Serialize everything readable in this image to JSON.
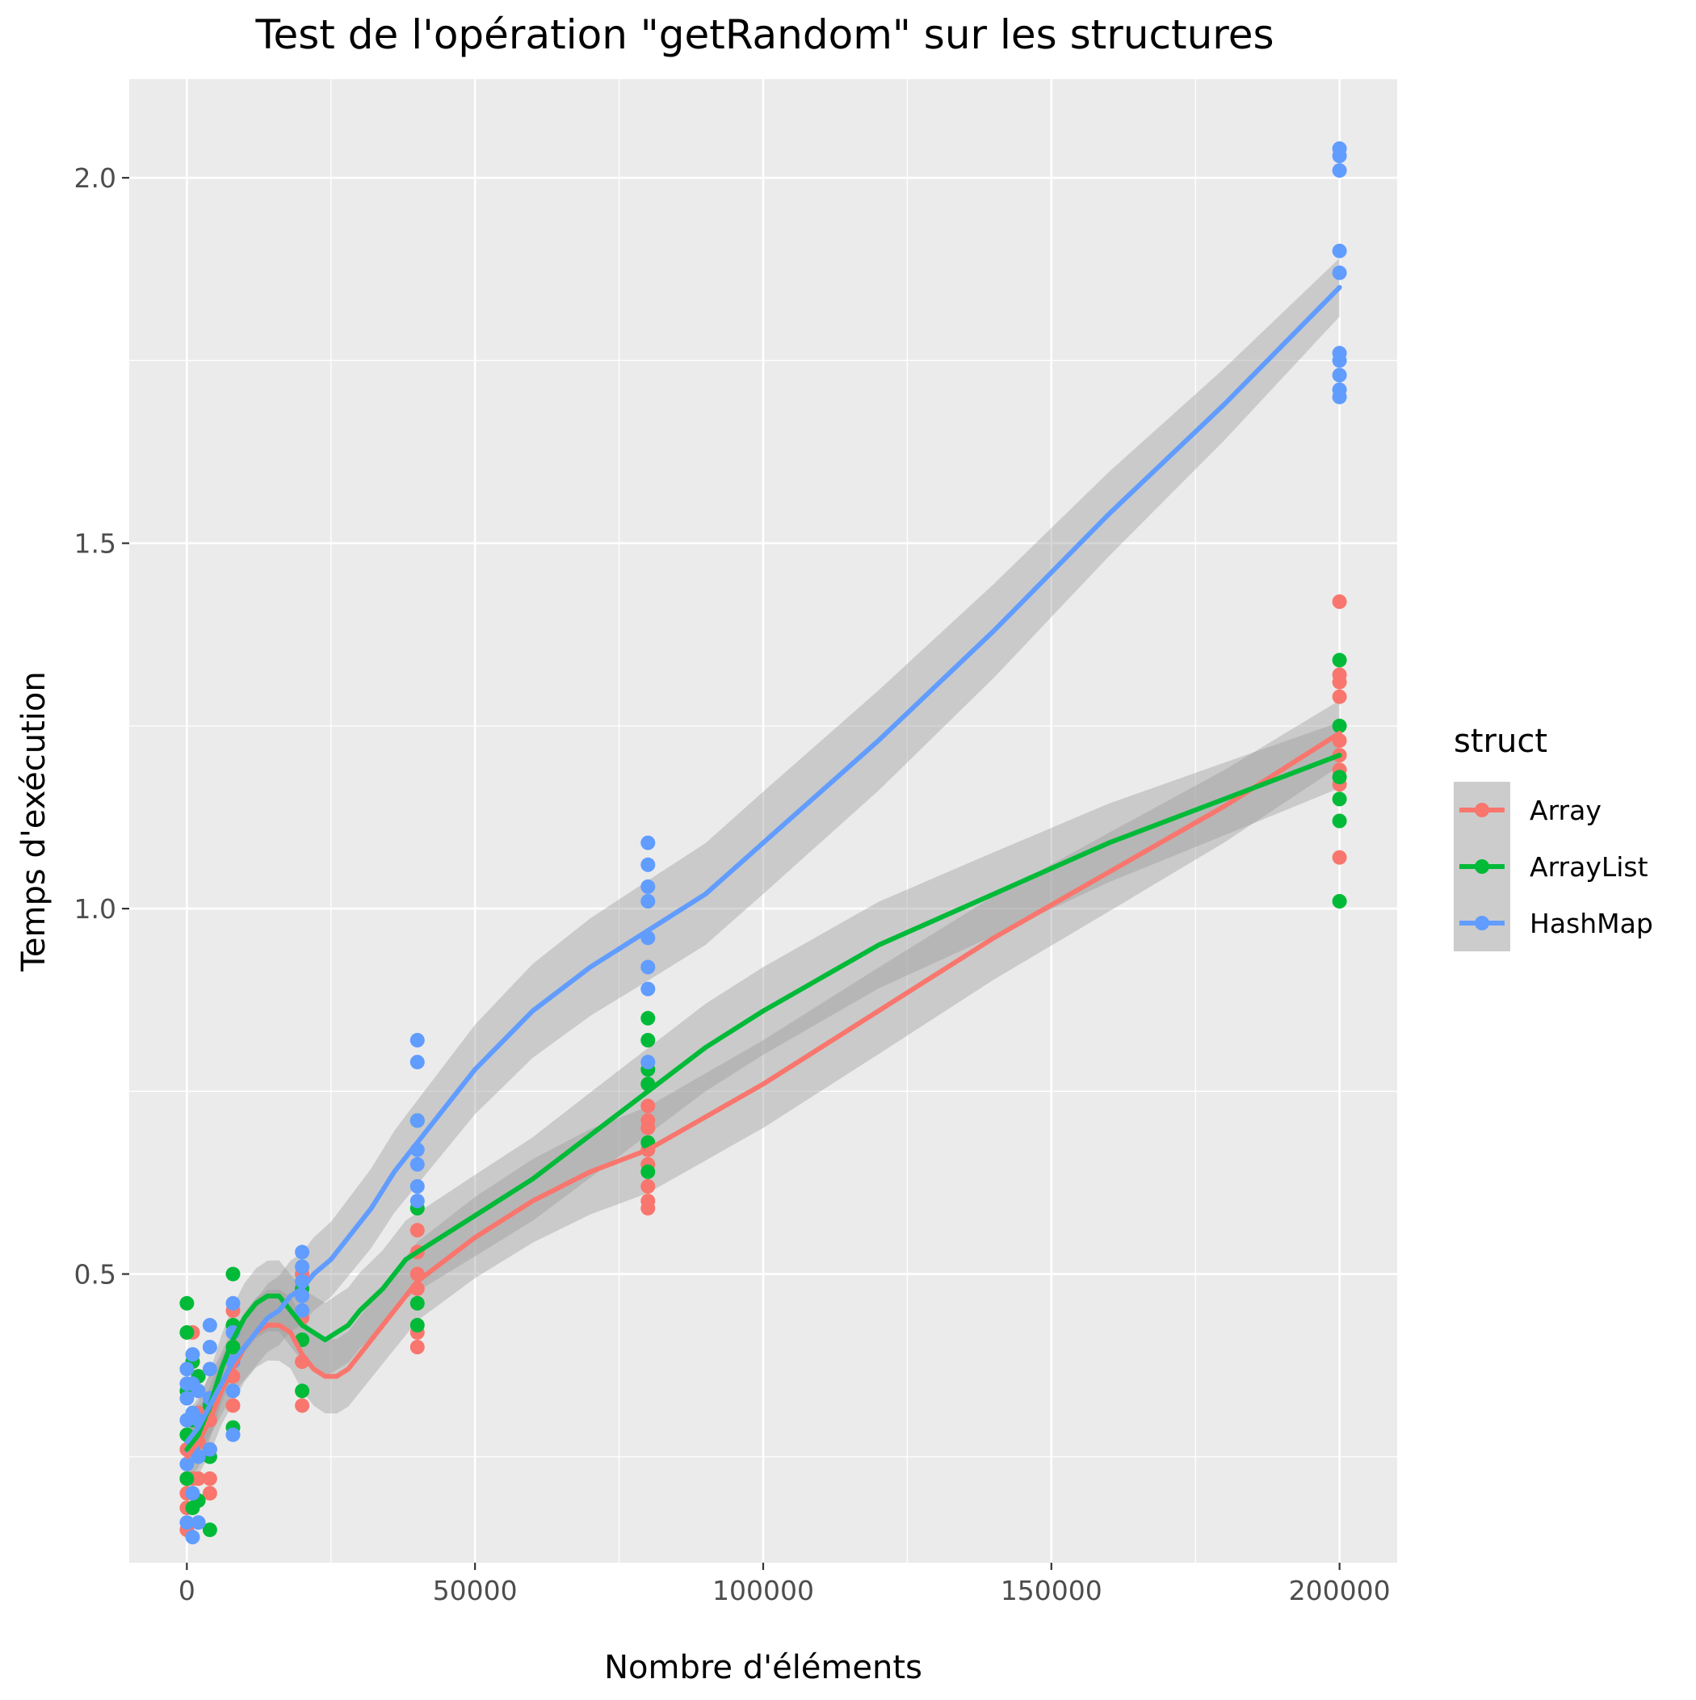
{
  "chart_data": {
    "type": "scatter",
    "title": "Test de l'opération \"getRandom\" sur les structures",
    "xlabel": "Nombre d'éléments",
    "ylabel": "Temps d'exécution",
    "xlim": [
      -10000,
      210000
    ],
    "ylim": [
      0.105,
      2.135
    ],
    "x_major_ticks": [
      0,
      50000,
      100000,
      150000,
      200000
    ],
    "x_tick_labels": [
      "0",
      "50000",
      "100000",
      "150000",
      "200000"
    ],
    "x_minor_ticks": [
      25000,
      75000,
      125000,
      175000
    ],
    "y_major_ticks": [
      0.5,
      1.0,
      1.5,
      2.0
    ],
    "y_tick_labels": [
      "0.5",
      "1.0",
      "1.5",
      "2.0"
    ],
    "y_minor_ticks": [
      0.25,
      0.75,
      1.25,
      1.75
    ],
    "grid": true,
    "legend": {
      "title": "struct",
      "position": "right",
      "entries": [
        "Array",
        "ArrayList",
        "HashMap"
      ]
    },
    "series": [
      {
        "name": "Array",
        "color": "#F8766D",
        "points": [
          [
            0,
            0.15
          ],
          [
            0,
            0.18
          ],
          [
            0,
            0.2
          ],
          [
            0,
            0.22
          ],
          [
            0,
            0.26
          ],
          [
            1000,
            0.22
          ],
          [
            1000,
            0.26
          ],
          [
            1000,
            0.3
          ],
          [
            1000,
            0.38
          ],
          [
            1000,
            0.42
          ],
          [
            2000,
            0.22
          ],
          [
            2000,
            0.27
          ],
          [
            2000,
            0.31
          ],
          [
            2000,
            0.36
          ],
          [
            4000,
            0.2
          ],
          [
            4000,
            0.22
          ],
          [
            4000,
            0.26
          ],
          [
            4000,
            0.3
          ],
          [
            8000,
            0.32
          ],
          [
            8000,
            0.36
          ],
          [
            8000,
            0.45
          ],
          [
            20000,
            0.32
          ],
          [
            20000,
            0.38
          ],
          [
            20000,
            0.44
          ],
          [
            20000,
            0.5
          ],
          [
            40000,
            0.4
          ],
          [
            40000,
            0.42
          ],
          [
            40000,
            0.48
          ],
          [
            40000,
            0.5
          ],
          [
            40000,
            0.53
          ],
          [
            40000,
            0.56
          ],
          [
            80000,
            0.59
          ],
          [
            80000,
            0.6
          ],
          [
            80000,
            0.62
          ],
          [
            80000,
            0.65
          ],
          [
            80000,
            0.67
          ],
          [
            80000,
            0.7
          ],
          [
            80000,
            0.71
          ],
          [
            80000,
            0.73
          ],
          [
            80000,
            0.76
          ],
          [
            200000,
            1.07
          ],
          [
            200000,
            1.17
          ],
          [
            200000,
            1.19
          ],
          [
            200000,
            1.21
          ],
          [
            200000,
            1.23
          ],
          [
            200000,
            1.29
          ],
          [
            200000,
            1.31
          ],
          [
            200000,
            1.32
          ],
          [
            200000,
            1.42
          ]
        ],
        "smooth": [
          [
            0,
            0.25
          ],
          [
            2000,
            0.27
          ],
          [
            4000,
            0.3
          ],
          [
            6000,
            0.34
          ],
          [
            8000,
            0.37
          ],
          [
            10000,
            0.4
          ],
          [
            12000,
            0.42
          ],
          [
            14000,
            0.43
          ],
          [
            16000,
            0.43
          ],
          [
            18000,
            0.42
          ],
          [
            20000,
            0.39
          ],
          [
            22000,
            0.37
          ],
          [
            24000,
            0.36
          ],
          [
            26000,
            0.36
          ],
          [
            28000,
            0.37
          ],
          [
            30000,
            0.39
          ],
          [
            34000,
            0.43
          ],
          [
            38000,
            0.47
          ],
          [
            40000,
            0.49
          ],
          [
            45000,
            0.52
          ],
          [
            50000,
            0.55
          ],
          [
            60000,
            0.6
          ],
          [
            70000,
            0.64
          ],
          [
            80000,
            0.67
          ],
          [
            100000,
            0.76
          ],
          [
            120000,
            0.86
          ],
          [
            140000,
            0.96
          ],
          [
            160000,
            1.05
          ],
          [
            180000,
            1.14
          ],
          [
            200000,
            1.24
          ]
        ],
        "band_halfwidth": [
          0.045,
          0.06
        ]
      },
      {
        "name": "ArrayList",
        "color": "#00BA38",
        "points": [
          [
            0,
            0.22
          ],
          [
            0,
            0.28
          ],
          [
            0,
            0.34
          ],
          [
            0,
            0.42
          ],
          [
            0,
            0.46
          ],
          [
            1000,
            0.18
          ],
          [
            1000,
            0.3
          ],
          [
            1000,
            0.38
          ],
          [
            2000,
            0.19
          ],
          [
            2000,
            0.36
          ],
          [
            4000,
            0.15
          ],
          [
            4000,
            0.25
          ],
          [
            4000,
            0.32
          ],
          [
            8000,
            0.29
          ],
          [
            8000,
            0.4
          ],
          [
            8000,
            0.43
          ],
          [
            8000,
            0.5
          ],
          [
            20000,
            0.34
          ],
          [
            20000,
            0.41
          ],
          [
            20000,
            0.48
          ],
          [
            40000,
            0.43
          ],
          [
            40000,
            0.46
          ],
          [
            40000,
            0.59
          ],
          [
            40000,
            0.71
          ],
          [
            80000,
            0.64
          ],
          [
            80000,
            0.68
          ],
          [
            80000,
            0.76
          ],
          [
            80000,
            0.78
          ],
          [
            80000,
            0.82
          ],
          [
            80000,
            0.85
          ],
          [
            200000,
            1.01
          ],
          [
            200000,
            1.12
          ],
          [
            200000,
            1.15
          ],
          [
            200000,
            1.18
          ],
          [
            200000,
            1.25
          ],
          [
            200000,
            1.34
          ]
        ],
        "smooth": [
          [
            0,
            0.26
          ],
          [
            2000,
            0.28
          ],
          [
            4000,
            0.32
          ],
          [
            6000,
            0.37
          ],
          [
            8000,
            0.41
          ],
          [
            10000,
            0.44
          ],
          [
            12000,
            0.46
          ],
          [
            14000,
            0.47
          ],
          [
            16000,
            0.47
          ],
          [
            18000,
            0.45
          ],
          [
            20000,
            0.43
          ],
          [
            22000,
            0.42
          ],
          [
            24000,
            0.41
          ],
          [
            26000,
            0.42
          ],
          [
            28000,
            0.43
          ],
          [
            30000,
            0.45
          ],
          [
            34000,
            0.48
          ],
          [
            38000,
            0.52
          ],
          [
            40000,
            0.53
          ],
          [
            50000,
            0.58
          ],
          [
            60000,
            0.63
          ],
          [
            70000,
            0.69
          ],
          [
            80000,
            0.75
          ],
          [
            90000,
            0.81
          ],
          [
            100000,
            0.86
          ],
          [
            120000,
            0.95
          ],
          [
            140000,
            1.02
          ],
          [
            160000,
            1.09
          ],
          [
            180000,
            1.15
          ],
          [
            200000,
            1.21
          ]
        ],
        "band_halfwidth": [
          0.045,
          0.06
        ]
      },
      {
        "name": "HashMap",
        "color": "#619CFF",
        "points": [
          [
            0,
            0.16
          ],
          [
            0,
            0.24
          ],
          [
            0,
            0.3
          ],
          [
            0,
            0.33
          ],
          [
            0,
            0.35
          ],
          [
            0,
            0.37
          ],
          [
            1000,
            0.14
          ],
          [
            1000,
            0.2
          ],
          [
            1000,
            0.26
          ],
          [
            1000,
            0.31
          ],
          [
            1000,
            0.35
          ],
          [
            1000,
            0.39
          ],
          [
            2000,
            0.16
          ],
          [
            2000,
            0.25
          ],
          [
            2000,
            0.3
          ],
          [
            2000,
            0.34
          ],
          [
            4000,
            0.26
          ],
          [
            4000,
            0.33
          ],
          [
            4000,
            0.37
          ],
          [
            4000,
            0.4
          ],
          [
            4000,
            0.43
          ],
          [
            8000,
            0.28
          ],
          [
            8000,
            0.34
          ],
          [
            8000,
            0.38
          ],
          [
            8000,
            0.42
          ],
          [
            8000,
            0.46
          ],
          [
            20000,
            0.45
          ],
          [
            20000,
            0.47
          ],
          [
            20000,
            0.49
          ],
          [
            20000,
            0.51
          ],
          [
            20000,
            0.53
          ],
          [
            40000,
            0.6
          ],
          [
            40000,
            0.62
          ],
          [
            40000,
            0.65
          ],
          [
            40000,
            0.67
          ],
          [
            40000,
            0.71
          ],
          [
            40000,
            0.79
          ],
          [
            40000,
            0.82
          ],
          [
            80000,
            0.79
          ],
          [
            80000,
            0.89
          ],
          [
            80000,
            0.92
          ],
          [
            80000,
            0.96
          ],
          [
            80000,
            1.01
          ],
          [
            80000,
            1.03
          ],
          [
            80000,
            1.06
          ],
          [
            80000,
            1.09
          ],
          [
            200000,
            1.7
          ],
          [
            200000,
            1.71
          ],
          [
            200000,
            1.73
          ],
          [
            200000,
            1.75
          ],
          [
            200000,
            1.76
          ],
          [
            200000,
            1.87
          ],
          [
            200000,
            1.9
          ],
          [
            200000,
            2.01
          ],
          [
            200000,
            2.03
          ],
          [
            200000,
            2.04
          ]
        ],
        "smooth": [
          [
            0,
            0.27
          ],
          [
            2000,
            0.29
          ],
          [
            4000,
            0.32
          ],
          [
            6000,
            0.35
          ],
          [
            8000,
            0.38
          ],
          [
            10000,
            0.4
          ],
          [
            12000,
            0.42
          ],
          [
            14000,
            0.44
          ],
          [
            16000,
            0.45
          ],
          [
            18000,
            0.47
          ],
          [
            20000,
            0.48
          ],
          [
            22000,
            0.5
          ],
          [
            25000,
            0.52
          ],
          [
            28000,
            0.55
          ],
          [
            32000,
            0.59
          ],
          [
            36000,
            0.64
          ],
          [
            40000,
            0.68
          ],
          [
            45000,
            0.73
          ],
          [
            50000,
            0.78
          ],
          [
            55000,
            0.82
          ],
          [
            60000,
            0.86
          ],
          [
            70000,
            0.92
          ],
          [
            80000,
            0.97
          ],
          [
            90000,
            1.02
          ],
          [
            100000,
            1.09
          ],
          [
            120000,
            1.23
          ],
          [
            140000,
            1.38
          ],
          [
            160000,
            1.54
          ],
          [
            180000,
            1.69
          ],
          [
            200000,
            1.85
          ]
        ],
        "band_halfwidth": [
          0.04,
          0.07
        ]
      }
    ]
  }
}
